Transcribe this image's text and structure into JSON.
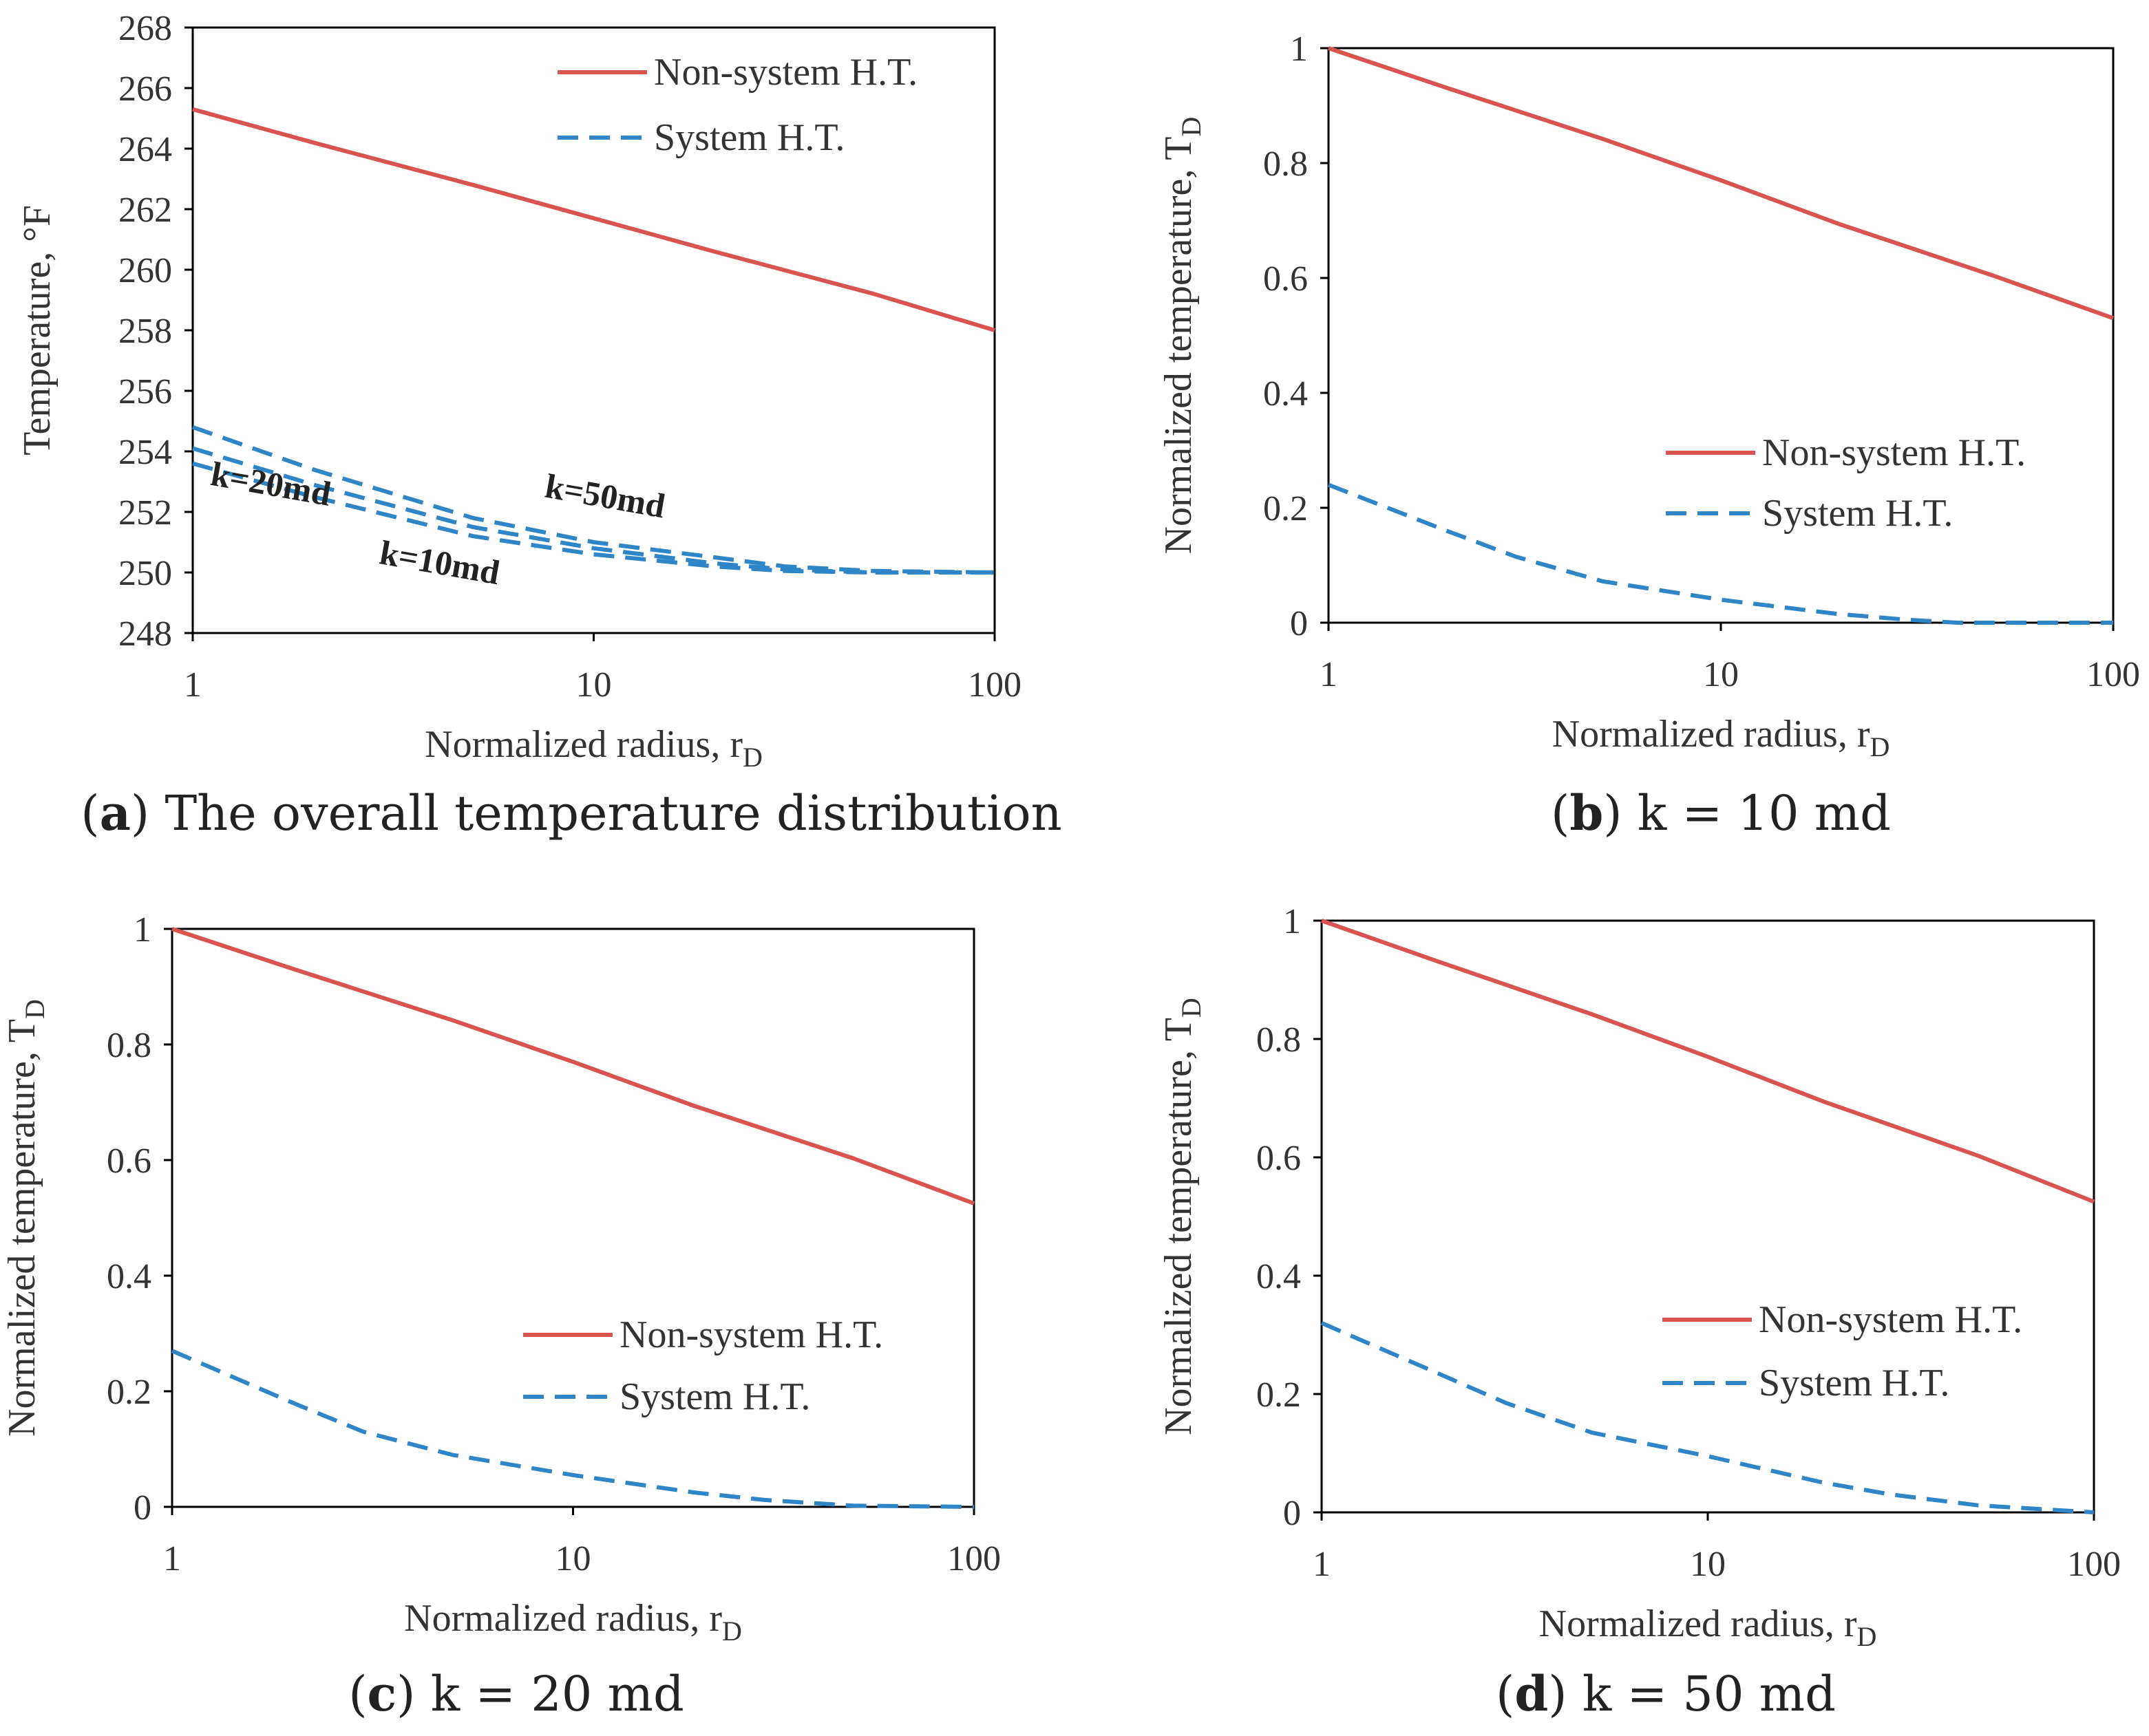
{
  "colors": {
    "non_system": "#d9534f",
    "system": "#2e86c8",
    "axis": "#000000",
    "text": "#333333"
  },
  "chart_data": [
    {
      "id": "a",
      "type": "line",
      "caption_letter": "a",
      "caption_text": "The overall temperature distribution",
      "xlabel": "Normalized radius, r",
      "xlabel_sub": "D",
      "ylabel": "Temperature, °F",
      "ylabel_sub": "",
      "xscale": "log",
      "xlim": [
        1,
        100
      ],
      "ylim": [
        248,
        268
      ],
      "xticks": [
        "1",
        "10",
        "100"
      ],
      "yticks": [
        "248",
        "250",
        "252",
        "254",
        "256",
        "258",
        "260",
        "262",
        "264",
        "266",
        "268"
      ],
      "legend": {
        "position": "top-right",
        "entries": [
          "Non-system H.T.",
          "System H.T."
        ]
      },
      "series": [
        {
          "name": "Non-system H.T.",
          "style": "solid",
          "color": "#d9534f",
          "x": [
            1,
            2,
            5,
            10,
            20,
            50,
            100
          ],
          "y": [
            265.3,
            264.2,
            262.8,
            261.7,
            260.6,
            259.2,
            258.0
          ]
        },
        {
          "name": "System H.T. (k=50md)",
          "style": "dashed",
          "color": "#2e86c8",
          "x": [
            1,
            2,
            5,
            10,
            20,
            30,
            50,
            100
          ],
          "y": [
            254.8,
            253.4,
            251.8,
            251.0,
            250.5,
            250.2,
            250.05,
            250.0
          ]
        },
        {
          "name": "System H.T. (k=20md)",
          "style": "dashed",
          "color": "#2e86c8",
          "x": [
            1,
            2,
            5,
            10,
            20,
            30,
            50,
            100
          ],
          "y": [
            254.1,
            252.9,
            251.5,
            250.8,
            250.3,
            250.1,
            250.0,
            250.0
          ]
        },
        {
          "name": "System H.T. (k=10md)",
          "style": "dashed",
          "color": "#2e86c8",
          "x": [
            1,
            2,
            5,
            10,
            20,
            30,
            50,
            100
          ],
          "y": [
            253.6,
            252.5,
            251.2,
            250.6,
            250.2,
            250.05,
            250.0,
            250.0
          ]
        }
      ],
      "annotations": [
        {
          "text": "k=20md",
          "x": 1.1,
          "y": 252.9
        },
        {
          "text": "k=50md",
          "x": 7.5,
          "y": 252.5
        },
        {
          "text": "k=10md",
          "x": 2.9,
          "y": 250.3
        }
      ]
    },
    {
      "id": "b",
      "type": "line",
      "caption_letter": "b",
      "caption_text": "k = 10 md",
      "xlabel": "Normalized radius, r",
      "xlabel_sub": "D",
      "ylabel": "Normalized temperature, T",
      "ylabel_sub": "D",
      "xscale": "log",
      "xlim": [
        1,
        100
      ],
      "ylim": [
        0,
        1
      ],
      "xticks": [
        "1",
        "10",
        "100"
      ],
      "yticks": [
        "0",
        "0.2",
        "0.4",
        "0.6",
        "0.8",
        "1"
      ],
      "legend": {
        "position": "bottom-right",
        "entries": [
          "Non-system H.T.",
          "System H.T."
        ]
      },
      "series": [
        {
          "name": "Non-system H.T.",
          "style": "solid",
          "color": "#d9534f",
          "x": [
            1,
            2,
            5,
            10,
            20,
            50,
            100
          ],
          "y": [
            1.0,
            0.931,
            0.842,
            0.77,
            0.694,
            0.603,
            0.53
          ]
        },
        {
          "name": "System H.T.",
          "style": "dashed",
          "color": "#2e86c8",
          "x": [
            1,
            2,
            3,
            5,
            10,
            20,
            30,
            40,
            100
          ],
          "y": [
            0.24,
            0.16,
            0.115,
            0.072,
            0.04,
            0.015,
            0.005,
            0.0,
            0.0
          ]
        }
      ]
    },
    {
      "id": "c",
      "type": "line",
      "caption_letter": "c",
      "caption_text": "k = 20 md",
      "xlabel": "Normalized radius, r",
      "xlabel_sub": "D",
      "ylabel": "Normalized temperature, T",
      "ylabel_sub": "D",
      "xscale": "log",
      "xlim": [
        1,
        100
      ],
      "ylim": [
        0,
        1
      ],
      "xticks": [
        "1",
        "10",
        "100"
      ],
      "yticks": [
        "0",
        "0.2",
        "0.4",
        "0.6",
        "0.8",
        "1"
      ],
      "legend": {
        "position": "bottom-right",
        "entries": [
          "Non-system H.T.",
          "System H.T."
        ]
      },
      "series": [
        {
          "name": "Non-system H.T.",
          "style": "solid",
          "color": "#d9534f",
          "x": [
            1,
            2,
            5,
            10,
            20,
            50,
            100
          ],
          "y": [
            1.0,
            0.931,
            0.842,
            0.77,
            0.694,
            0.603,
            0.525
          ]
        },
        {
          "name": "System H.T.",
          "style": "dashed",
          "color": "#2e86c8",
          "x": [
            1,
            2,
            3,
            5,
            10,
            20,
            30,
            50,
            100
          ],
          "y": [
            0.27,
            0.18,
            0.13,
            0.09,
            0.055,
            0.025,
            0.012,
            0.002,
            0.0
          ]
        }
      ]
    },
    {
      "id": "d",
      "type": "line",
      "caption_letter": "d",
      "caption_text": "k = 50 md",
      "xlabel": "Normalized radius, r",
      "xlabel_sub": "D",
      "ylabel": "Normalized temperature, T",
      "ylabel_sub": "D",
      "xscale": "log",
      "xlim": [
        1,
        100
      ],
      "ylim": [
        0,
        1
      ],
      "xticks": [
        "1",
        "10",
        "100"
      ],
      "yticks": [
        "0",
        "0.2",
        "0.4",
        "0.6",
        "0.8",
        "1"
      ],
      "legend": {
        "position": "bottom-right",
        "entries": [
          "Non-system H.T.",
          "System H.T."
        ]
      },
      "series": [
        {
          "name": "Non-system H.T.",
          "style": "solid",
          "color": "#d9534f",
          "x": [
            1,
            2,
            5,
            10,
            20,
            50,
            100
          ],
          "y": [
            1.0,
            0.931,
            0.842,
            0.77,
            0.694,
            0.603,
            0.525
          ]
        },
        {
          "name": "System H.T.",
          "style": "dashed",
          "color": "#2e86c8",
          "x": [
            1,
            2,
            3,
            5,
            10,
            20,
            30,
            50,
            100
          ],
          "y": [
            0.32,
            0.235,
            0.185,
            0.135,
            0.095,
            0.05,
            0.03,
            0.012,
            0.0
          ]
        }
      ]
    }
  ]
}
